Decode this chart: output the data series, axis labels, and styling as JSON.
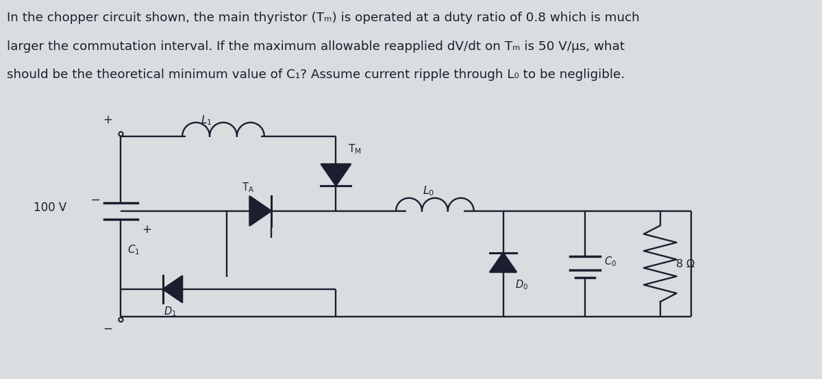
{
  "bg_color": "#d8dde0",
  "line_color": "#1a1e2e",
  "text_color": "#1a1e2e",
  "title_fontsize": 13.2,
  "fig_width": 12.0,
  "fig_height": 5.53,
  "dpi": 100,
  "title_lines": [
    "In the chopper circuit shown, the main thyristor (Tₘ) is operated at a duty ratio of 0.8 which is much",
    "larger the commutation interval. If the maximum allowable reapplied dV/dt on Tₘ is 50 V/μs, what",
    "should be the theoretical minimum value of C₁? Assume current ripple through L₀ to be negligible."
  ]
}
